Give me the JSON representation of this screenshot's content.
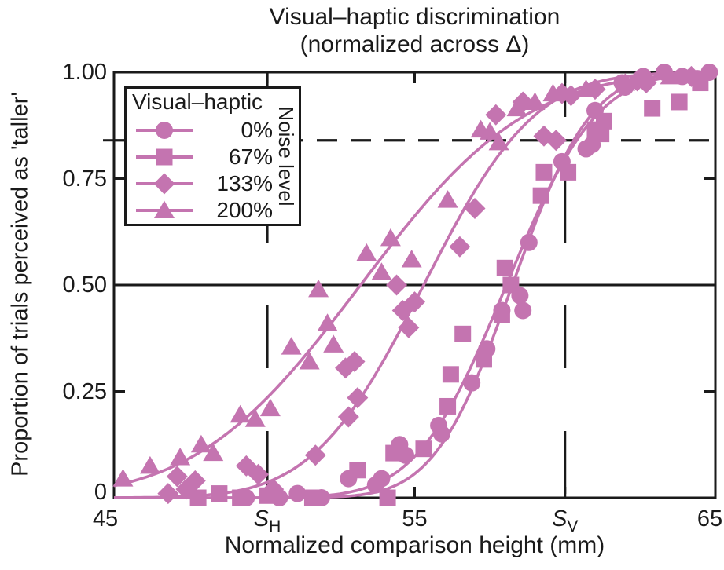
{
  "chart_data": {
    "type": "scatter",
    "title_line1": "Visual–haptic discrimination",
    "title_line2": "(normalized across Δ)",
    "xlabel": "Normalized comparison height (mm)",
    "ylabel": "Proportion of trials perceived as 'taller'",
    "xlim": [
      45,
      65
    ],
    "ylim": [
      0,
      1
    ],
    "grid": "off",
    "marker_color": "#c474b0",
    "axis_color": "#1a1a1a",
    "x_ticks": [
      {
        "v": 45,
        "label": "45",
        "tick": false,
        "dx": -11
      },
      {
        "v": 50.1,
        "label": "S",
        "sub": "H",
        "tick": true,
        "dx": 0
      },
      {
        "v": 55,
        "label": "55",
        "tick": true,
        "dx": 0
      },
      {
        "v": 60.0,
        "label": "S",
        "sub": "V",
        "tick": true,
        "dx": 0
      },
      {
        "v": 65,
        "label": "65",
        "tick": false,
        "dx": -7
      }
    ],
    "y_ticks": [
      {
        "v": 0,
        "label": "0",
        "tick": false
      },
      {
        "v": 0.25,
        "label": "0.25",
        "tick": true
      },
      {
        "v": 0.5,
        "label": "0.50",
        "tick": false
      },
      {
        "v": 0.75,
        "label": "0.75",
        "tick": true
      },
      {
        "v": 1,
        "label": "1.00",
        "tick": false
      }
    ],
    "reference_lines": {
      "h_solid": 0.5,
      "h_dashed": 0.84,
      "v_dashed": [
        50.1,
        60.0
      ],
      "left_threshold_tick": 0.84
    },
    "legend": {
      "title": "Visual–haptic",
      "side_label": "Noise level",
      "position": "upper-left"
    },
    "series": [
      {
        "name": "0%",
        "marker": "circle",
        "curve": {
          "mu": 58.25,
          "sigma": 2.05
        },
        "points": [
          [
            49.4,
            0
          ],
          [
            50.5,
            0
          ],
          [
            51.1,
            0.01
          ],
          [
            51.9,
            0
          ],
          [
            52.8,
            0.045
          ],
          [
            53.7,
            0.03
          ],
          [
            53.9,
            0.045
          ],
          [
            54.5,
            0.125
          ],
          [
            54.7,
            0.1
          ],
          [
            55.8,
            0.17
          ],
          [
            55.9,
            0.15
          ],
          [
            56.9,
            0.27
          ],
          [
            57.4,
            0.35
          ],
          [
            57.9,
            0.44
          ],
          [
            58.5,
            0.475
          ],
          [
            58.6,
            0.44
          ],
          [
            58.8,
            0.6
          ],
          [
            59.9,
            0.79
          ],
          [
            60.7,
            0.82
          ],
          [
            60.9,
            0.83
          ],
          [
            61.0,
            0.91
          ],
          [
            61.9,
            0.975
          ],
          [
            62.0,
            0.965
          ],
          [
            62.6,
            0.99
          ],
          [
            63.3,
            1.0
          ],
          [
            63.9,
            0.99
          ],
          [
            64.4,
            0.985
          ],
          [
            64.8,
            1.0
          ]
        ]
      },
      {
        "name": "67%",
        "marker": "square",
        "curve": {
          "mu": 58.05,
          "sigma": 2.35
        },
        "points": [
          [
            47.8,
            0
          ],
          [
            48.5,
            0.01
          ],
          [
            49.2,
            0
          ],
          [
            50.1,
            0.005
          ],
          [
            51.6,
            0
          ],
          [
            53.1,
            0.065
          ],
          [
            54.1,
            0
          ],
          [
            54.3,
            0.105
          ],
          [
            55.3,
            0.115
          ],
          [
            56.1,
            0.215
          ],
          [
            56.2,
            0.29
          ],
          [
            56.6,
            0.385
          ],
          [
            57.3,
            0.325
          ],
          [
            57.9,
            0.43
          ],
          [
            58.0,
            0.54
          ],
          [
            58.2,
            0.5
          ],
          [
            59.2,
            0.71
          ],
          [
            59.3,
            0.765
          ],
          [
            60.1,
            0.765
          ],
          [
            61.0,
            0.865
          ],
          [
            61.2,
            0.855
          ],
          [
            61.3,
            0.885
          ],
          [
            62.9,
            0.915
          ],
          [
            63.8,
            0.93
          ],
          [
            64.5,
            0.975
          ]
        ]
      },
      {
        "name": "133%",
        "marker": "diamond",
        "curve": {
          "mu": 55.3,
          "sigma": 2.9
        },
        "points": [
          [
            46.8,
            0.01
          ],
          [
            47.1,
            0.05
          ],
          [
            47.4,
            0.02
          ],
          [
            47.7,
            0.04
          ],
          [
            49.4,
            0.075
          ],
          [
            49.8,
            0.055
          ],
          [
            50.3,
            0.02
          ],
          [
            51.7,
            0.1
          ],
          [
            52.7,
            0.305
          ],
          [
            52.8,
            0.19
          ],
          [
            53.0,
            0.32
          ],
          [
            53.1,
            0.235
          ],
          [
            54.4,
            0.5
          ],
          [
            54.6,
            0.44
          ],
          [
            54.8,
            0.4
          ],
          [
            55.0,
            0.46
          ],
          [
            56.5,
            0.59
          ],
          [
            57.0,
            0.68
          ],
          [
            57.7,
            0.9
          ],
          [
            58.6,
            0.93
          ],
          [
            59.3,
            0.85
          ],
          [
            59.7,
            0.84
          ],
          [
            59.9,
            0.95
          ],
          [
            60.2,
            0.945
          ],
          [
            61.0,
            0.96
          ],
          [
            62.4,
            0.98
          ],
          [
            62.7,
            0.975
          ],
          [
            64.2,
            0.99
          ]
        ]
      },
      {
        "name": "200%",
        "marker": "triangle",
        "curve": {
          "mu": 53.2,
          "sigma": 4.3
        },
        "points": [
          [
            45.3,
            0.045
          ],
          [
            46.2,
            0.075
          ],
          [
            47.2,
            0.095
          ],
          [
            47.9,
            0.125
          ],
          [
            48.3,
            0.105
          ],
          [
            49.2,
            0.195
          ],
          [
            49.7,
            0.185
          ],
          [
            50.2,
            0.21
          ],
          [
            50.9,
            0.355
          ],
          [
            51.5,
            0.32
          ],
          [
            51.8,
            0.49
          ],
          [
            52.1,
            0.41
          ],
          [
            52.3,
            0.36
          ],
          [
            53.4,
            0.575
          ],
          [
            53.9,
            0.53
          ],
          [
            54.2,
            0.61
          ],
          [
            54.9,
            0.56
          ],
          [
            56.1,
            0.7
          ],
          [
            57.2,
            0.865
          ],
          [
            57.5,
            0.86
          ],
          [
            57.8,
            0.835
          ],
          [
            58.4,
            0.915
          ],
          [
            59.0,
            0.93
          ],
          [
            59.6,
            0.95
          ],
          [
            60.7,
            0.96
          ],
          [
            62.0,
            0.975
          ],
          [
            63.5,
            0.99
          ]
        ]
      }
    ]
  }
}
